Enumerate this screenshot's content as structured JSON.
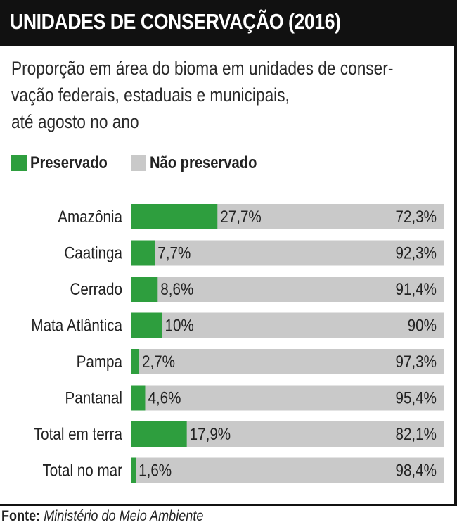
{
  "title": "UNIDADES DE CONSERVAÇÃO (2016)",
  "subtitle": "Proporção em área do bioma em unidades de conser-\nvação federais, estaduais e municipais,\naté agosto no ano",
  "legend": {
    "preserved": "Preservado",
    "not_preserved": "Não preservado"
  },
  "colors": {
    "preserved": "#2e9e3e",
    "not_preserved": "#c9c9c9"
  },
  "footer": {
    "label": "Fonte:",
    "source": "Ministério do Meio Ambiente"
  },
  "chart_data": {
    "type": "bar",
    "orientation": "horizontal",
    "stacked": true,
    "categories": [
      "Amazônia",
      "Caatinga",
      "Cerrado",
      "Mata Atlântica",
      "Pampa",
      "Pantanal",
      "Total em terra",
      "Total no mar"
    ],
    "series": [
      {
        "name": "Preservado",
        "values": [
          27.7,
          7.7,
          8.6,
          10,
          2.7,
          4.6,
          17.9,
          1.6
        ],
        "labels": [
          "27,7%",
          "7,7%",
          "8,6%",
          "10%",
          "2,7%",
          "4,6%",
          "17,9%",
          "1,6%"
        ]
      },
      {
        "name": "Não preservado",
        "values": [
          72.3,
          92.3,
          91.4,
          90,
          97.3,
          95.4,
          82.1,
          98.4
        ],
        "labels": [
          "72,3%",
          "92,3%",
          "91,4%",
          "90%",
          "97,3%",
          "95,4%",
          "82,1%",
          "98,4%"
        ]
      }
    ],
    "xlim": [
      0,
      100
    ],
    "grid": false,
    "legend_position": "top-left"
  }
}
